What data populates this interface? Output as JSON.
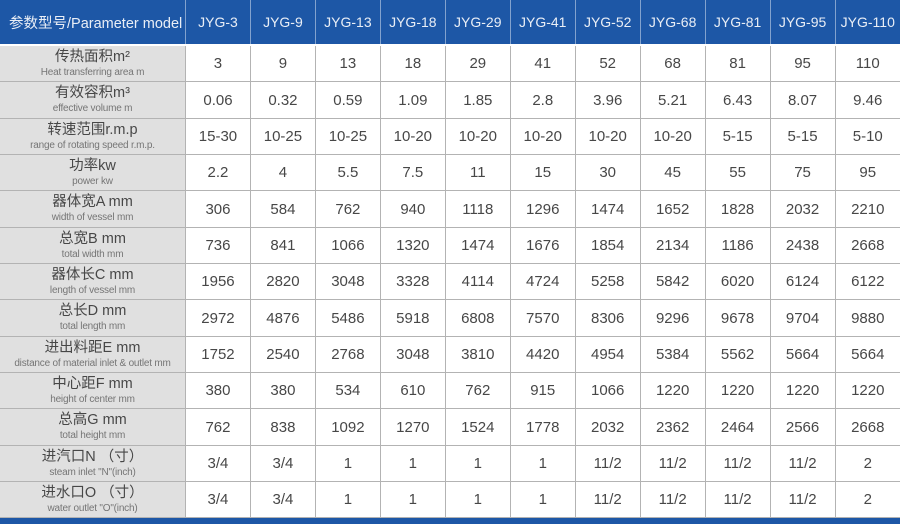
{
  "colors": {
    "header_bg": "#1d57a6",
    "header_text": "#e9eef6",
    "label_bg": "#e0e0e0",
    "grid": "#b3b3b3",
    "value_text": "#474747",
    "bottom_bar": "#1d57a6"
  },
  "table": {
    "header": {
      "param_label": "参数型号/Parameter model",
      "models": [
        "JYG-3",
        "JYG-9",
        "JYG-13",
        "JYG-18",
        "JYG-29",
        "JYG-41",
        "JYG-52",
        "JYG-68",
        "JYG-81",
        "JYG-95",
        "JYG-110"
      ]
    },
    "rows": [
      {
        "zh": "传热面积m²",
        "en": "Heat transferring area m",
        "values": [
          "3",
          "9",
          "13",
          "18",
          "29",
          "41",
          "52",
          "68",
          "81",
          "95",
          "110"
        ]
      },
      {
        "zh": "有效容积m³",
        "en": "effective volume m",
        "values": [
          "0.06",
          "0.32",
          "0.59",
          "1.09",
          "1.85",
          "2.8",
          "3.96",
          "5.21",
          "6.43",
          "8.07",
          "9.46"
        ]
      },
      {
        "zh": "转速范围r.m.p",
        "en": "range of rotating speed r.m.p.",
        "values": [
          "15-30",
          "10-25",
          "10-25",
          "10-20",
          "10-20",
          "10-20",
          "10-20",
          "10-20",
          "5-15",
          "5-15",
          "5-10"
        ]
      },
      {
        "zh": "功率kw",
        "en": "power kw",
        "values": [
          "2.2",
          "4",
          "5.5",
          "7.5",
          "11",
          "15",
          "30",
          "45",
          "55",
          "75",
          "95"
        ]
      },
      {
        "zh": "器体宽A mm",
        "en": "width of vessel mm",
        "values": [
          "306",
          "584",
          "762",
          "940",
          "1118",
          "1296",
          "1474",
          "1652",
          "1828",
          "2032",
          "2210"
        ]
      },
      {
        "zh": "总宽B mm",
        "en": "total width mm",
        "values": [
          "736",
          "841",
          "1066",
          "1320",
          "1474",
          "1676",
          "1854",
          "2134",
          "1186",
          "2438",
          "2668"
        ]
      },
      {
        "zh": "器体长C mm",
        "en": "length of vessel mm",
        "values": [
          "1956",
          "2820",
          "3048",
          "3328",
          "4114",
          "4724",
          "5258",
          "5842",
          "6020",
          "6124",
          "6122"
        ]
      },
      {
        "zh": "总长D mm",
        "en": "total length mm",
        "values": [
          "2972",
          "4876",
          "5486",
          "5918",
          "6808",
          "7570",
          "8306",
          "9296",
          "9678",
          "9704",
          "9880"
        ]
      },
      {
        "zh": "进出料距E mm",
        "en": "distance of material inlet & outlet mm",
        "values": [
          "1752",
          "2540",
          "2768",
          "3048",
          "3810",
          "4420",
          "4954",
          "5384",
          "5562",
          "5664",
          "5664"
        ]
      },
      {
        "zh": "中心距F mm",
        "en": "height of center mm",
        "values": [
          "380",
          "380",
          "534",
          "610",
          "762",
          "915",
          "1066",
          "1220",
          "1220",
          "1220",
          "1220"
        ]
      },
      {
        "zh": "总高G mm",
        "en": "total height mm",
        "values": [
          "762",
          "838",
          "1092",
          "1270",
          "1524",
          "1778",
          "2032",
          "2362",
          "2464",
          "2566",
          "2668"
        ]
      },
      {
        "zh": "进汽口N （寸）",
        "en": "steam inlet \"N\"(inch)",
        "values": [
          "3/4",
          "3/4",
          "1",
          "1",
          "1",
          "1",
          "11/2",
          "11/2",
          "11/2",
          "11/2",
          "2"
        ]
      },
      {
        "zh": "进水口O （寸）",
        "en": "water outlet \"O\"(inch)",
        "values": [
          "3/4",
          "3/4",
          "1",
          "1",
          "1",
          "1",
          "11/2",
          "11/2",
          "11/2",
          "11/2",
          "2"
        ]
      }
    ]
  }
}
